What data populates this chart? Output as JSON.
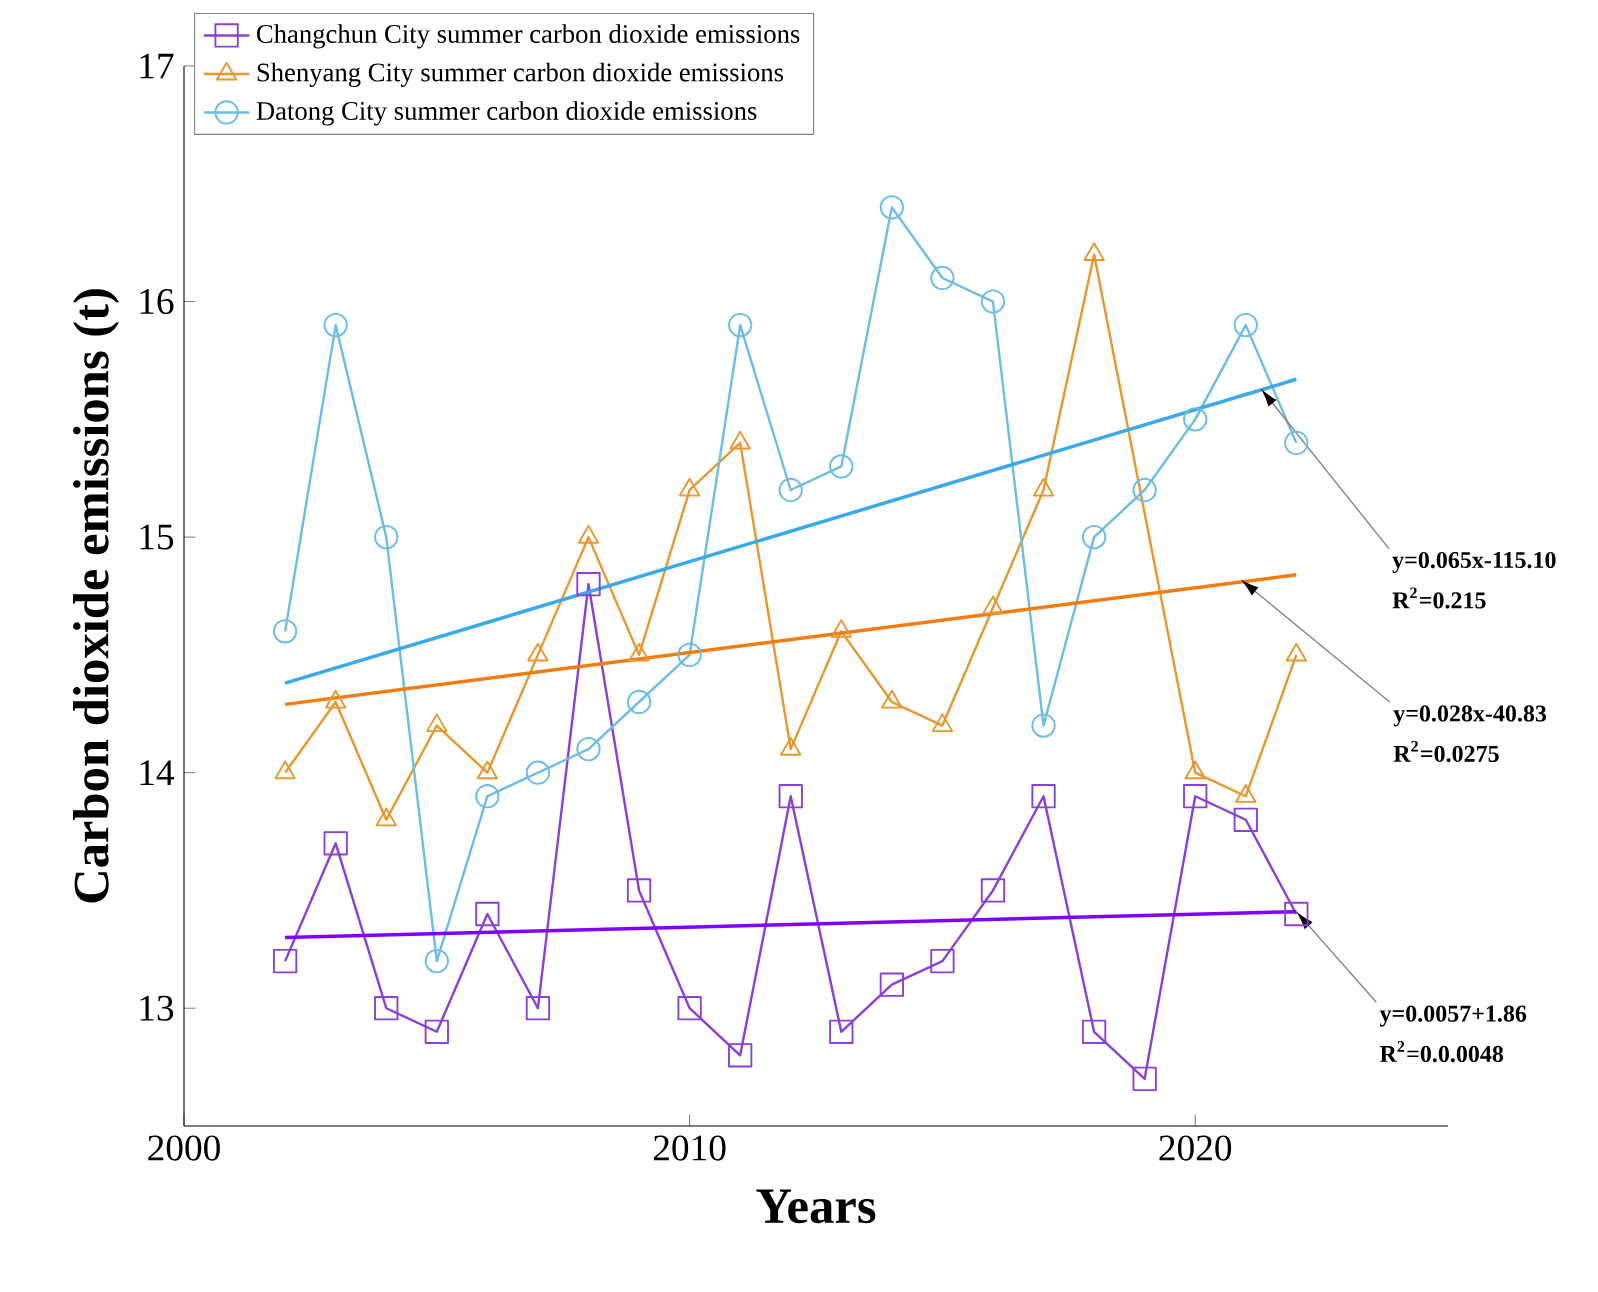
{
  "chart_data": {
    "type": "line",
    "xlabel": "Years",
    "ylabel": "Carbon dioxide emissions (t)",
    "x": [
      2002,
      2003,
      2004,
      2005,
      2006,
      2007,
      2008,
      2009,
      2010,
      2011,
      2012,
      2013,
      2014,
      2015,
      2016,
      2017,
      2018,
      2019,
      2020,
      2021,
      2022
    ],
    "xlim": [
      2000,
      2025
    ],
    "xticks": [
      2000,
      2010,
      2020
    ],
    "ylim": [
      12.5,
      17
    ],
    "yticks": [
      13,
      14,
      15,
      16,
      17
    ],
    "grid": false,
    "legend": "top left",
    "line_style": "solid",
    "series": [
      {
        "name": "Changchun City summer carbon dioxide emissions",
        "color": "#8a3fd6",
        "marker": "square",
        "values": [
          13.2,
          13.7,
          13.0,
          12.9,
          13.4,
          13.0,
          14.8,
          13.5,
          13.0,
          12.8,
          13.9,
          12.9,
          13.1,
          13.2,
          13.5,
          13.9,
          12.9,
          12.7,
          13.9,
          13.8,
          13.4
        ]
      },
      {
        "name": "Shenyang City summer carbon dioxide emissions",
        "color": "#e8962e",
        "marker": "triangle",
        "x": [
          2002,
          2003,
          2004,
          2005,
          2006,
          2007,
          2008,
          2009,
          2010,
          2011,
          2012,
          2013,
          2014,
          2015,
          2016,
          2017,
          2018,
          2020,
          2021,
          2022
        ],
        "values": [
          14.0,
          14.3,
          13.8,
          14.2,
          14.0,
          14.5,
          15.0,
          14.5,
          15.2,
          15.4,
          14.1,
          14.6,
          14.3,
          14.2,
          14.7,
          15.2,
          16.2,
          14.0,
          13.9,
          14.5
        ]
      },
      {
        "name": "Datong City summer carbon dioxide emissions",
        "color": "#6cbde3",
        "marker": "circle",
        "values": [
          14.6,
          15.9,
          15.0,
          13.2,
          13.9,
          14.0,
          14.1,
          14.3,
          14.5,
          15.9,
          15.2,
          15.3,
          16.4,
          16.1,
          16.0,
          14.2,
          15.0,
          15.2,
          15.5,
          15.9,
          15.4
        ]
      },
      {
        "type": "line",
        "color": "#3aa9e8",
        "marker": "none",
        "x": [
          2002,
          2022
        ],
        "values": [
          14.38,
          15.67
        ]
      },
      {
        "type": "line",
        "color": "#f07c10",
        "marker": "none",
        "x": [
          2002,
          2022
        ],
        "values": [
          14.29,
          14.84
        ]
      },
      {
        "type": "line",
        "color": "#8000ff",
        "marker": "none",
        "x": [
          2002,
          2022
        ],
        "values": [
          13.3,
          13.41
        ]
      }
    ],
    "annotations": [
      {
        "text": "y=0.065x-115.10",
        "x": 2021.3,
        "y": 15.63
      },
      "R$^{2}$=0.215",
      {
        "text": "y=0.028x-40.83",
        "x": 2020.9,
        "y": 14.82
      },
      "R$^{2}$=0.0275",
      {
        "text": "y=0.0057+1.86",
        "x": 2022,
        "y": 13.41
      },
      "R$^{2}$=0.0.0048"
    ]
  }
}
